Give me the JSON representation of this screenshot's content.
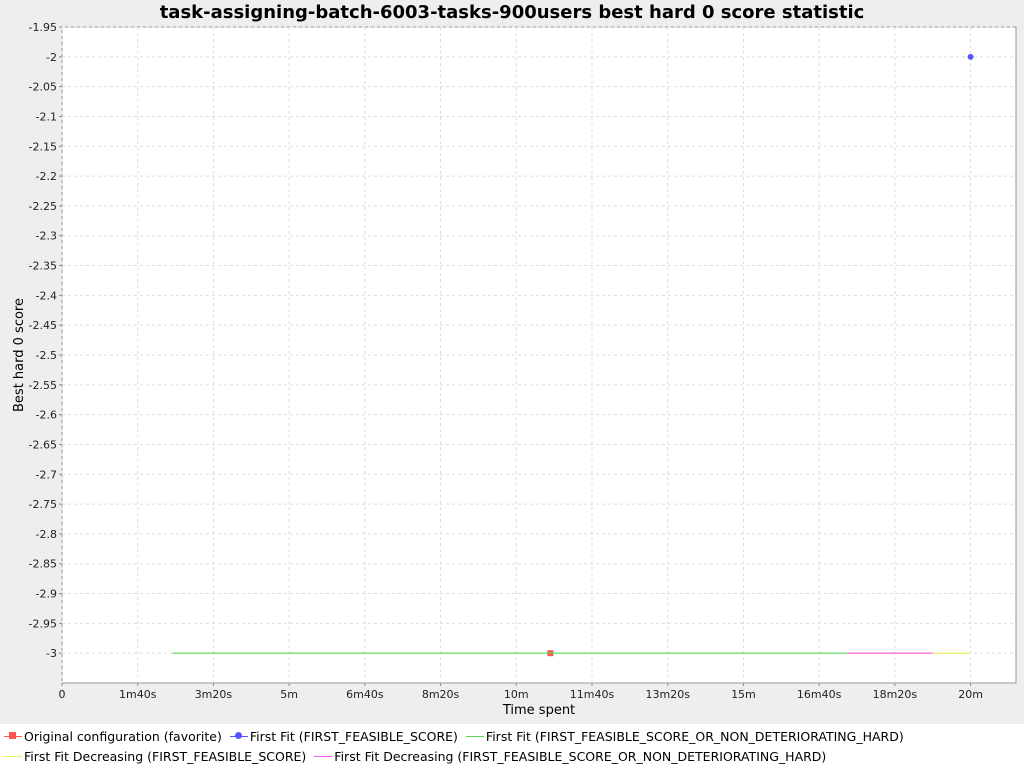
{
  "chart_data": {
    "type": "line",
    "title": "task-assigning-batch-6003-tasks-900users best hard 0 score statistic",
    "xlabel": "Time spent",
    "ylabel": "Best hard 0 score",
    "xlim": [
      0,
      1260
    ],
    "ylim": [
      -3.05,
      -1.95
    ],
    "x_unit": "seconds",
    "grid": true,
    "legend_position": "bottom",
    "x_tick_labels": [
      "0",
      "1m40s",
      "3m20s",
      "5m",
      "6m40s",
      "8m20s",
      "10m",
      "11m40s",
      "13m20s",
      "15m",
      "16m40s",
      "18m20s",
      "20m"
    ],
    "x_tick_values": [
      0,
      100,
      200,
      300,
      400,
      500,
      600,
      700,
      800,
      900,
      1000,
      1100,
      1200
    ],
    "y_tick_labels": [
      "-1.95",
      "-2",
      "-2.05",
      "-2.1",
      "-2.15",
      "-2.2",
      "-2.25",
      "-2.3",
      "-2.35",
      "-2.4",
      "-2.45",
      "-2.5",
      "-2.55",
      "-2.6",
      "-2.65",
      "-2.7",
      "-2.75",
      "-2.8",
      "-2.85",
      "-2.9",
      "-2.95",
      "-3"
    ],
    "y_tick_values": [
      -1.95,
      -2,
      -2.05,
      -2.1,
      -2.15,
      -2.2,
      -2.25,
      -2.3,
      -2.35,
      -2.4,
      -2.45,
      -2.5,
      -2.55,
      -2.6,
      -2.65,
      -2.7,
      -2.75,
      -2.8,
      -2.85,
      -2.9,
      -2.95,
      -3
    ],
    "series": [
      {
        "name": "Original configuration (favorite)",
        "color": "#ff5555",
        "marker": "square",
        "line": false,
        "points": [
          [
            645,
            -3
          ]
        ]
      },
      {
        "name": "First Fit (FIRST_FEASIBLE_SCORE)",
        "color": "#5555ff",
        "marker": "circle",
        "line": false,
        "points": [
          [
            1200,
            -2
          ]
        ]
      },
      {
        "name": "First Fit (FIRST_FEASIBLE_SCORE_OR_NON_DETERIORATING_HARD)",
        "color": "#55dd55",
        "marker": "none",
        "line": true,
        "points": [
          [
            146,
            -3
          ],
          [
            1037,
            -3
          ]
        ]
      },
      {
        "name": "First Fit Decreasing (FIRST_FEASIBLE_SCORE)",
        "color": "#eeee55",
        "marker": "none",
        "line": true,
        "points": [
          [
            1037,
            -3
          ],
          [
            1200,
            -3
          ]
        ]
      },
      {
        "name": "First Fit Decreasing (FIRST_FEASIBLE_SCORE_OR_NON_DETERIORATING_HARD)",
        "color": "#ff55ff",
        "marker": "none",
        "line": true,
        "points": [
          [
            1037,
            -3
          ],
          [
            1150,
            -3
          ]
        ]
      }
    ]
  }
}
